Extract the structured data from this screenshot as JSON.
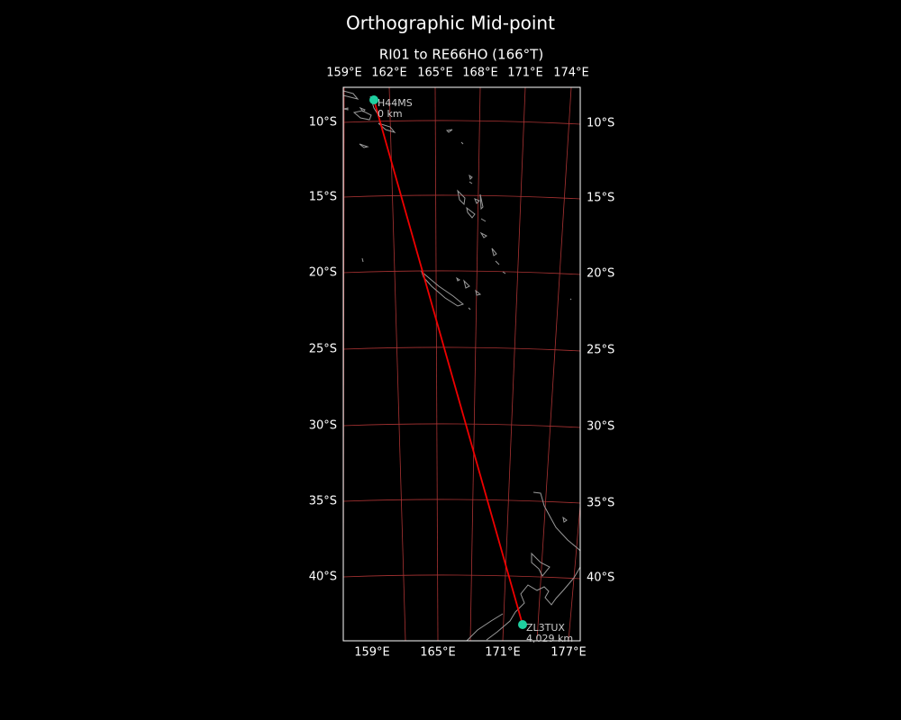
{
  "title": "Orthographic Mid-point",
  "subtitle": "RI01 to RE66HO (166°T)",
  "top_ticks": [
    "159°E",
    "162°E",
    "165°E",
    "168°E",
    "171°E",
    "174°E"
  ],
  "bottom_ticks": [
    "159°E",
    "165°E",
    "171°E",
    "177°E"
  ],
  "left_ticks": [
    "10°S",
    "15°S",
    "20°S",
    "25°S",
    "30°S",
    "35°S",
    "40°S"
  ],
  "right_ticks": [
    "10°S",
    "15°S",
    "20°S",
    "25°S",
    "30°S",
    "35°S",
    "40°S"
  ],
  "stations": [
    {
      "label": "H44MS",
      "distance": "0 km"
    },
    {
      "label": "ZL3TUX",
      "distance": "4,029 km"
    }
  ]
}
